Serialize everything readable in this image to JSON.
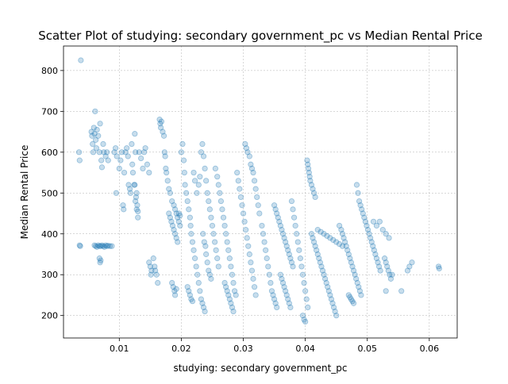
{
  "chart_data": {
    "type": "scatter",
    "title": "Scatter Plot of studying: secondary government_pc vs Median Rental Price",
    "xlabel": "studying: secondary government_pc",
    "ylabel": "Median Rental Price",
    "xlim": [
      0.001,
      0.0645
    ],
    "ylim": [
      145,
      860
    ],
    "xticks": [
      0.01,
      0.02,
      0.03,
      0.04,
      0.05,
      0.06
    ],
    "xtick_labels": [
      "0.01",
      "0.02",
      "0.03",
      "0.04",
      "0.05",
      "0.06"
    ],
    "yticks": [
      200,
      300,
      400,
      500,
      600,
      700,
      800
    ],
    "ytick_labels": [
      "200",
      "300",
      "400",
      "500",
      "600",
      "700",
      "800"
    ],
    "grid": true,
    "point_color": "#1f77b4",
    "point_alpha": 0.25,
    "points": [
      [
        0.0038,
        825
      ],
      [
        0.0035,
        600
      ],
      [
        0.0036,
        580
      ],
      [
        0.0037,
        370
      ],
      [
        0.0036,
        372
      ],
      [
        0.0055,
        650
      ],
      [
        0.0056,
        640
      ],
      [
        0.0057,
        620
      ],
      [
        0.0058,
        600
      ],
      [
        0.0059,
        660
      ],
      [
        0.006,
        645
      ],
      [
        0.0061,
        700
      ],
      [
        0.0062,
        630
      ],
      [
        0.0063,
        610
      ],
      [
        0.0064,
        655
      ],
      [
        0.0066,
        640
      ],
      [
        0.0068,
        600
      ],
      [
        0.0069,
        670
      ],
      [
        0.0071,
        580
      ],
      [
        0.0072,
        563
      ],
      [
        0.0074,
        620
      ],
      [
        0.0075,
        600
      ],
      [
        0.0078,
        590
      ],
      [
        0.008,
        600
      ],
      [
        0.0082,
        580
      ],
      [
        0.006,
        372
      ],
      [
        0.0062,
        370
      ],
      [
        0.0064,
        368
      ],
      [
        0.0066,
        372
      ],
      [
        0.0068,
        370
      ],
      [
        0.007,
        370
      ],
      [
        0.0072,
        372
      ],
      [
        0.0074,
        370
      ],
      [
        0.0076,
        368
      ],
      [
        0.0078,
        372
      ],
      [
        0.008,
        370
      ],
      [
        0.0082,
        371
      ],
      [
        0.0085,
        370
      ],
      [
        0.0088,
        370
      ],
      [
        0.0068,
        340
      ],
      [
        0.0069,
        330
      ],
      [
        0.007,
        335
      ],
      [
        0.0092,
        600
      ],
      [
        0.0094,
        610
      ],
      [
        0.0096,
        590
      ],
      [
        0.0095,
        500
      ],
      [
        0.01,
        560
      ],
      [
        0.0102,
        580
      ],
      [
        0.0104,
        600
      ],
      [
        0.0106,
        470
      ],
      [
        0.0107,
        460
      ],
      [
        0.0108,
        550
      ],
      [
        0.011,
        600
      ],
      [
        0.0112,
        610
      ],
      [
        0.0114,
        590
      ],
      [
        0.0115,
        520
      ],
      [
        0.0117,
        510
      ],
      [
        0.0118,
        500
      ],
      [
        0.012,
        620
      ],
      [
        0.0121,
        570
      ],
      [
        0.0122,
        550
      ],
      [
        0.0124,
        520
      ],
      [
        0.0125,
        645
      ],
      [
        0.0126,
        600
      ],
      [
        0.0127,
        490
      ],
      [
        0.0128,
        460
      ],
      [
        0.013,
        440
      ],
      [
        0.0132,
        600
      ],
      [
        0.0135,
        585
      ],
      [
        0.0138,
        560
      ],
      [
        0.014,
        600
      ],
      [
        0.0142,
        610
      ],
      [
        0.0145,
        570
      ],
      [
        0.0148,
        550
      ],
      [
        0.0128,
        500
      ],
      [
        0.0126,
        480
      ],
      [
        0.0129,
        470
      ],
      [
        0.013,
        455
      ],
      [
        0.0125,
        520
      ],
      [
        0.0148,
        330
      ],
      [
        0.015,
        320
      ],
      [
        0.0151,
        300
      ],
      [
        0.0152,
        310
      ],
      [
        0.0155,
        340
      ],
      [
        0.0157,
        320
      ],
      [
        0.0158,
        310
      ],
      [
        0.016,
        300
      ],
      [
        0.0162,
        280
      ],
      [
        0.0165,
        680
      ],
      [
        0.0166,
        670
      ],
      [
        0.0167,
        660
      ],
      [
        0.0168,
        675
      ],
      [
        0.017,
        650
      ],
      [
        0.0172,
        640
      ],
      [
        0.0173,
        600
      ],
      [
        0.0174,
        590
      ],
      [
        0.0175,
        560
      ],
      [
        0.0176,
        550
      ],
      [
        0.0178,
        530
      ],
      [
        0.018,
        510
      ],
      [
        0.0182,
        500
      ],
      [
        0.0185,
        480
      ],
      [
        0.0188,
        470
      ],
      [
        0.019,
        460
      ],
      [
        0.0192,
        450
      ],
      [
        0.0194,
        440
      ],
      [
        0.0196,
        430
      ],
      [
        0.0198,
        420
      ],
      [
        0.018,
        450
      ],
      [
        0.0182,
        440
      ],
      [
        0.0184,
        430
      ],
      [
        0.0186,
        420
      ],
      [
        0.0188,
        410
      ],
      [
        0.019,
        400
      ],
      [
        0.0192,
        390
      ],
      [
        0.0194,
        380
      ],
      [
        0.0196,
        450
      ],
      [
        0.0198,
        445
      ],
      [
        0.0185,
        280
      ],
      [
        0.0187,
        270
      ],
      [
        0.0189,
        260
      ],
      [
        0.019,
        250
      ],
      [
        0.0192,
        265
      ],
      [
        0.02,
        600
      ],
      [
        0.0202,
        620
      ],
      [
        0.0204,
        580
      ],
      [
        0.0205,
        550
      ],
      [
        0.0206,
        520
      ],
      [
        0.0208,
        500
      ],
      [
        0.021,
        480
      ],
      [
        0.0212,
        460
      ],
      [
        0.0214,
        440
      ],
      [
        0.0215,
        420
      ],
      [
        0.0216,
        400
      ],
      [
        0.0218,
        380
      ],
      [
        0.022,
        360
      ],
      [
        0.0222,
        340
      ],
      [
        0.0224,
        320
      ],
      [
        0.0226,
        300
      ],
      [
        0.0228,
        280
      ],
      [
        0.023,
        260
      ],
      [
        0.0232,
        240
      ],
      [
        0.0234,
        230
      ],
      [
        0.0236,
        220
      ],
      [
        0.0238,
        210
      ],
      [
        0.021,
        270
      ],
      [
        0.0212,
        260
      ],
      [
        0.0214,
        250
      ],
      [
        0.0216,
        240
      ],
      [
        0.0218,
        235
      ],
      [
        0.022,
        550
      ],
      [
        0.0222,
        530
      ],
      [
        0.0225,
        500
      ],
      [
        0.0228,
        520
      ],
      [
        0.023,
        540
      ],
      [
        0.0232,
        600
      ],
      [
        0.0234,
        620
      ],
      [
        0.0236,
        590
      ],
      [
        0.0238,
        560
      ],
      [
        0.024,
        530
      ],
      [
        0.0242,
        500
      ],
      [
        0.0244,
        480
      ],
      [
        0.0246,
        460
      ],
      [
        0.0248,
        440
      ],
      [
        0.025,
        420
      ],
      [
        0.0252,
        400
      ],
      [
        0.0254,
        380
      ],
      [
        0.0256,
        360
      ],
      [
        0.0258,
        340
      ],
      [
        0.026,
        320
      ],
      [
        0.0235,
        400
      ],
      [
        0.0237,
        380
      ],
      [
        0.0239,
        370
      ],
      [
        0.024,
        350
      ],
      [
        0.0242,
        330
      ],
      [
        0.0244,
        310
      ],
      [
        0.0246,
        300
      ],
      [
        0.0248,
        290
      ],
      [
        0.0255,
        560
      ],
      [
        0.0258,
        540
      ],
      [
        0.026,
        520
      ],
      [
        0.0262,
        500
      ],
      [
        0.0264,
        480
      ],
      [
        0.0266,
        460
      ],
      [
        0.0268,
        440
      ],
      [
        0.027,
        420
      ],
      [
        0.0272,
        400
      ],
      [
        0.0274,
        380
      ],
      [
        0.0276,
        360
      ],
      [
        0.0278,
        340
      ],
      [
        0.028,
        320
      ],
      [
        0.0282,
        300
      ],
      [
        0.0284,
        280
      ],
      [
        0.0286,
        260
      ],
      [
        0.0288,
        250
      ],
      [
        0.027,
        280
      ],
      [
        0.0272,
        270
      ],
      [
        0.0274,
        260
      ],
      [
        0.0276,
        250
      ],
      [
        0.0278,
        240
      ],
      [
        0.028,
        230
      ],
      [
        0.0282,
        220
      ],
      [
        0.0284,
        210
      ],
      [
        0.029,
        550
      ],
      [
        0.0292,
        530
      ],
      [
        0.0294,
        510
      ],
      [
        0.0296,
        490
      ],
      [
        0.0298,
        470
      ],
      [
        0.03,
        450
      ],
      [
        0.0302,
        430
      ],
      [
        0.0304,
        410
      ],
      [
        0.0306,
        390
      ],
      [
        0.0308,
        370
      ],
      [
        0.031,
        350
      ],
      [
        0.0312,
        330
      ],
      [
        0.0314,
        310
      ],
      [
        0.0316,
        290
      ],
      [
        0.0318,
        270
      ],
      [
        0.032,
        250
      ],
      [
        0.0303,
        620
      ],
      [
        0.0305,
        610
      ],
      [
        0.0307,
        600
      ],
      [
        0.031,
        590
      ],
      [
        0.0312,
        570
      ],
      [
        0.0314,
        560
      ],
      [
        0.0316,
        550
      ],
      [
        0.0318,
        530
      ],
      [
        0.032,
        510
      ],
      [
        0.0322,
        490
      ],
      [
        0.0324,
        470
      ],
      [
        0.0326,
        450
      ],
      [
        0.033,
        420
      ],
      [
        0.0332,
        400
      ],
      [
        0.0334,
        380
      ],
      [
        0.0336,
        360
      ],
      [
        0.0338,
        340
      ],
      [
        0.034,
        320
      ],
      [
        0.0342,
        300
      ],
      [
        0.0344,
        280
      ],
      [
        0.0346,
        260
      ],
      [
        0.0348,
        250
      ],
      [
        0.035,
        240
      ],
      [
        0.0352,
        230
      ],
      [
        0.0354,
        220
      ],
      [
        0.035,
        470
      ],
      [
        0.0352,
        460
      ],
      [
        0.0354,
        450
      ],
      [
        0.0356,
        440
      ],
      [
        0.0358,
        430
      ],
      [
        0.036,
        420
      ],
      [
        0.0362,
        410
      ],
      [
        0.0364,
        400
      ],
      [
        0.0366,
        390
      ],
      [
        0.0368,
        380
      ],
      [
        0.037,
        370
      ],
      [
        0.0372,
        360
      ],
      [
        0.0374,
        350
      ],
      [
        0.0376,
        340
      ],
      [
        0.0378,
        330
      ],
      [
        0.038,
        320
      ],
      [
        0.036,
        300
      ],
      [
        0.0362,
        290
      ],
      [
        0.0364,
        280
      ],
      [
        0.0366,
        270
      ],
      [
        0.0368,
        260
      ],
      [
        0.037,
        250
      ],
      [
        0.0372,
        240
      ],
      [
        0.0374,
        230
      ],
      [
        0.0376,
        220
      ],
      [
        0.0378,
        480
      ],
      [
        0.038,
        460
      ],
      [
        0.0382,
        440
      ],
      [
        0.0384,
        420
      ],
      [
        0.0386,
        400
      ],
      [
        0.0388,
        380
      ],
      [
        0.039,
        360
      ],
      [
        0.0392,
        340
      ],
      [
        0.0394,
        320
      ],
      [
        0.0396,
        300
      ],
      [
        0.0398,
        280
      ],
      [
        0.04,
        260
      ],
      [
        0.0402,
        240
      ],
      [
        0.0404,
        220
      ],
      [
        0.0396,
        200
      ],
      [
        0.0398,
        190
      ],
      [
        0.04,
        185
      ],
      [
        0.0403,
        580
      ],
      [
        0.0404,
        570
      ],
      [
        0.0405,
        560
      ],
      [
        0.0406,
        550
      ],
      [
        0.0407,
        540
      ],
      [
        0.0408,
        530
      ],
      [
        0.041,
        520
      ],
      [
        0.0412,
        510
      ],
      [
        0.0414,
        500
      ],
      [
        0.0416,
        490
      ],
      [
        0.041,
        400
      ],
      [
        0.0412,
        390
      ],
      [
        0.0414,
        380
      ],
      [
        0.0416,
        370
      ],
      [
        0.0418,
        360
      ],
      [
        0.042,
        350
      ],
      [
        0.0422,
        340
      ],
      [
        0.0424,
        330
      ],
      [
        0.0426,
        320
      ],
      [
        0.0428,
        310
      ],
      [
        0.043,
        300
      ],
      [
        0.0432,
        290
      ],
      [
        0.0434,
        280
      ],
      [
        0.0436,
        270
      ],
      [
        0.0438,
        260
      ],
      [
        0.044,
        250
      ],
      [
        0.0442,
        240
      ],
      [
        0.0444,
        230
      ],
      [
        0.0446,
        220
      ],
      [
        0.0448,
        210
      ],
      [
        0.045,
        200
      ],
      [
        0.042,
        410
      ],
      [
        0.0425,
        405
      ],
      [
        0.043,
        400
      ],
      [
        0.0435,
        395
      ],
      [
        0.044,
        390
      ],
      [
        0.0445,
        385
      ],
      [
        0.045,
        380
      ],
      [
        0.0455,
        375
      ],
      [
        0.046,
        370
      ],
      [
        0.0455,
        420
      ],
      [
        0.0458,
        410
      ],
      [
        0.046,
        400
      ],
      [
        0.0462,
        390
      ],
      [
        0.0464,
        380
      ],
      [
        0.0466,
        370
      ],
      [
        0.0468,
        360
      ],
      [
        0.047,
        350
      ],
      [
        0.0472,
        340
      ],
      [
        0.0474,
        330
      ],
      [
        0.0476,
        320
      ],
      [
        0.0478,
        310
      ],
      [
        0.048,
        300
      ],
      [
        0.0482,
        290
      ],
      [
        0.0484,
        280
      ],
      [
        0.0486,
        270
      ],
      [
        0.0488,
        260
      ],
      [
        0.049,
        250
      ],
      [
        0.047,
        250
      ],
      [
        0.0472,
        245
      ],
      [
        0.0474,
        240
      ],
      [
        0.0476,
        235
      ],
      [
        0.0478,
        230
      ],
      [
        0.0483,
        520
      ],
      [
        0.0485,
        500
      ],
      [
        0.0487,
        480
      ],
      [
        0.0489,
        470
      ],
      [
        0.0491,
        460
      ],
      [
        0.0493,
        450
      ],
      [
        0.0495,
        440
      ],
      [
        0.0497,
        430
      ],
      [
        0.0499,
        420
      ],
      [
        0.0501,
        410
      ],
      [
        0.0503,
        400
      ],
      [
        0.0505,
        390
      ],
      [
        0.0507,
        380
      ],
      [
        0.0509,
        370
      ],
      [
        0.0511,
        360
      ],
      [
        0.0513,
        350
      ],
      [
        0.0515,
        340
      ],
      [
        0.0517,
        330
      ],
      [
        0.0519,
        320
      ],
      [
        0.0521,
        310
      ],
      [
        0.051,
        430
      ],
      [
        0.0515,
        420
      ],
      [
        0.052,
        430
      ],
      [
        0.0525,
        410
      ],
      [
        0.053,
        400
      ],
      [
        0.0535,
        390
      ],
      [
        0.0528,
        340
      ],
      [
        0.053,
        330
      ],
      [
        0.0532,
        320
      ],
      [
        0.0534,
        310
      ],
      [
        0.0536,
        300
      ],
      [
        0.0538,
        290
      ],
      [
        0.054,
        300
      ],
      [
        0.053,
        260
      ],
      [
        0.0555,
        260
      ],
      [
        0.0565,
        310
      ],
      [
        0.0568,
        320
      ],
      [
        0.0572,
        330
      ],
      [
        0.0615,
        320
      ],
      [
        0.0616,
        315
      ]
    ]
  }
}
